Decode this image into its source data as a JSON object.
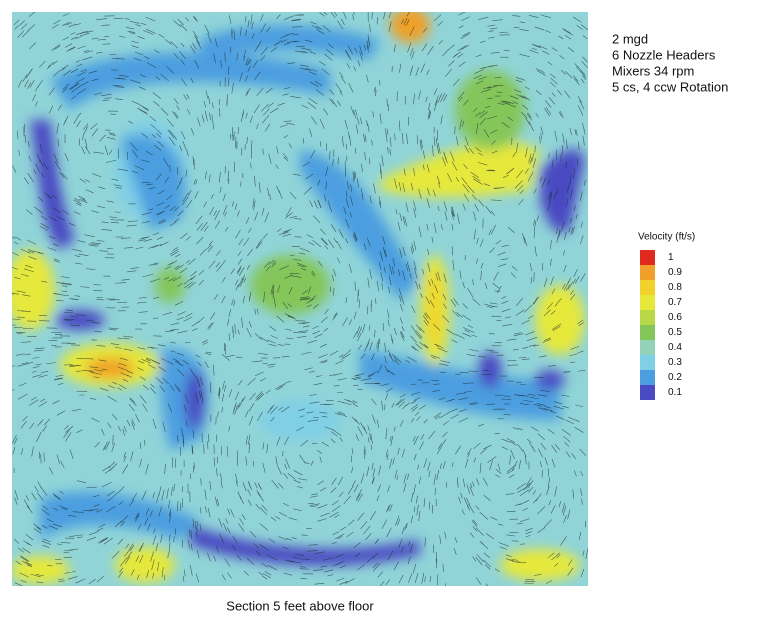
{
  "chart_data": {
    "type": "contour",
    "notes": [
      "2 mgd",
      "6 Nozzle Headers",
      "Mixers 34 rpm",
      "5 cs, 4 ccw Rotation"
    ],
    "legend_title": "Velocity (ft/s)",
    "levels": [
      1,
      0.9,
      0.8,
      0.7,
      0.6,
      0.5,
      0.4,
      0.3,
      0.2,
      0.1
    ],
    "colors": [
      "#e02a1e",
      "#f0a028",
      "#f2d22a",
      "#e6e83a",
      "#b8d848",
      "#84c65a",
      "#92d2b8",
      "#7fcfe6",
      "#4c9ee0",
      "#4a4ac2"
    ],
    "caption": "Section 5 feet above floor"
  }
}
